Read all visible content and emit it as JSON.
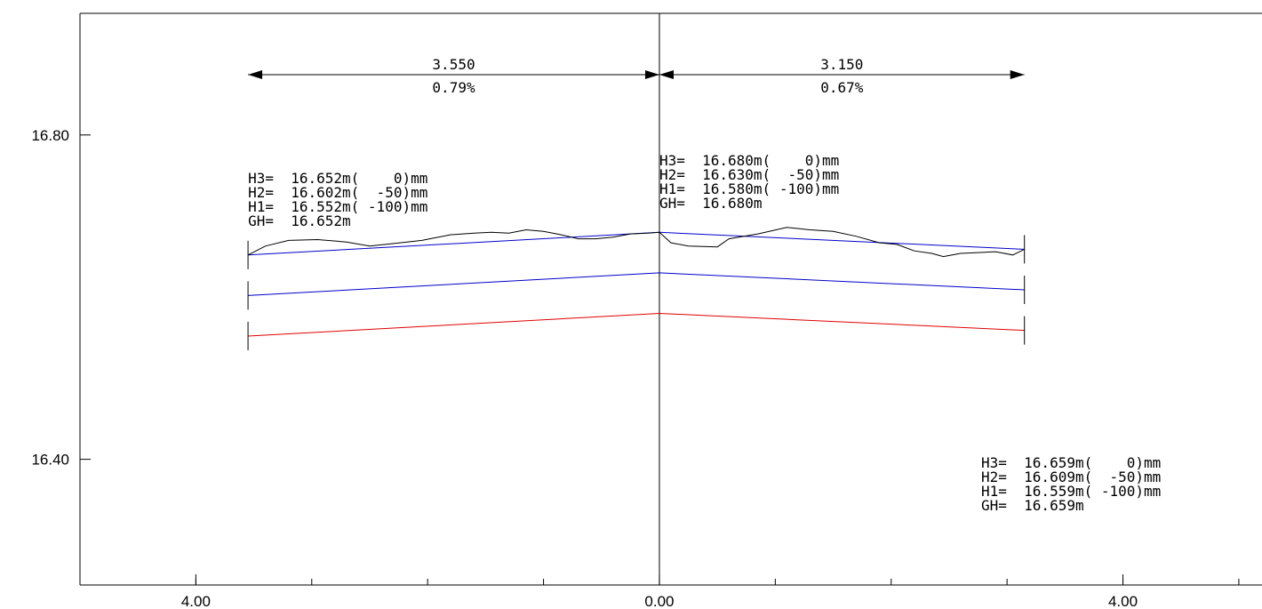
{
  "chart_data": {
    "type": "line",
    "title": "",
    "xlabel": "",
    "ylabel": "",
    "xlim": [
      -5.0,
      5.2
    ],
    "ylim": [
      16.245,
      16.95
    ],
    "x_ticks": [
      -4.0,
      0.0,
      4.0
    ],
    "x_tick_labels": [
      "4.00",
      "0.00",
      "4.00"
    ],
    "x_minor_tick_step": 1.0,
    "y_ticks": [
      16.8,
      16.4
    ],
    "y_tick_labels": [
      "16.80",
      "16.40"
    ],
    "grid": false,
    "colors": {
      "H3": "#0000cc",
      "H2": "#0000cc",
      "H1": "#e00000",
      "ground": "#000000",
      "axis": "#000000"
    },
    "series": [
      {
        "name": "H3",
        "x": [
          -3.55,
          0.0,
          3.15
        ],
        "y": [
          16.652,
          16.68,
          16.659
        ]
      },
      {
        "name": "H2",
        "x": [
          -3.55,
          0.0,
          3.15
        ],
        "y": [
          16.602,
          16.63,
          16.609
        ]
      },
      {
        "name": "H1",
        "x": [
          -3.55,
          0.0,
          3.15
        ],
        "y": [
          16.552,
          16.58,
          16.559
        ]
      },
      {
        "name": "ground",
        "x": [
          -3.55,
          -3.4,
          -3.2,
          -2.95,
          -2.7,
          -2.5,
          -2.3,
          -2.05,
          -1.8,
          -1.6,
          -1.45,
          -1.3,
          -1.15,
          -1.0,
          -0.85,
          -0.7,
          -0.55,
          -0.4,
          -0.25,
          -0.1,
          0.0,
          0.1,
          0.25,
          0.5,
          0.6,
          0.85,
          1.1,
          1.3,
          1.5,
          1.7,
          1.9,
          2.05,
          2.2,
          2.35,
          2.45,
          2.6,
          2.75,
          2.9,
          3.05,
          3.15
        ],
        "y": [
          16.652,
          16.663,
          16.67,
          16.671,
          16.668,
          16.663,
          16.666,
          16.67,
          16.677,
          16.679,
          16.68,
          16.679,
          16.683,
          16.681,
          16.677,
          16.672,
          16.672,
          16.674,
          16.678,
          16.679,
          16.68,
          16.667,
          16.663,
          16.662,
          16.672,
          16.678,
          16.686,
          16.683,
          16.681,
          16.675,
          16.667,
          16.665,
          16.657,
          16.654,
          16.65,
          16.654,
          16.655,
          16.656,
          16.652,
          16.659
        ]
      }
    ],
    "dimensions": [
      {
        "from": -3.55,
        "to": 0.0,
        "length": "3.550",
        "slope": "0.79%"
      },
      {
        "from": 0.0,
        "to": 3.15,
        "length": "3.150",
        "slope": "0.67%"
      }
    ],
    "annotations": [
      {
        "anchor": "left",
        "lines": [
          "H3=  16.652m(    0)mm",
          "H2=  16.602m(  -50)mm",
          "H1=  16.552m( -100)mm",
          "GH=  16.652m"
        ]
      },
      {
        "anchor": "center",
        "lines": [
          "H3=  16.680m(    0)mm",
          "H2=  16.630m(  -50)mm",
          "H1=  16.580m( -100)mm",
          "GH=  16.680m"
        ]
      },
      {
        "anchor": "right",
        "lines": [
          "H3=  16.659m(    0)mm",
          "H2=  16.609m(  -50)mm",
          "H1=  16.559m( -100)mm",
          "GH=  16.659m"
        ]
      }
    ]
  }
}
